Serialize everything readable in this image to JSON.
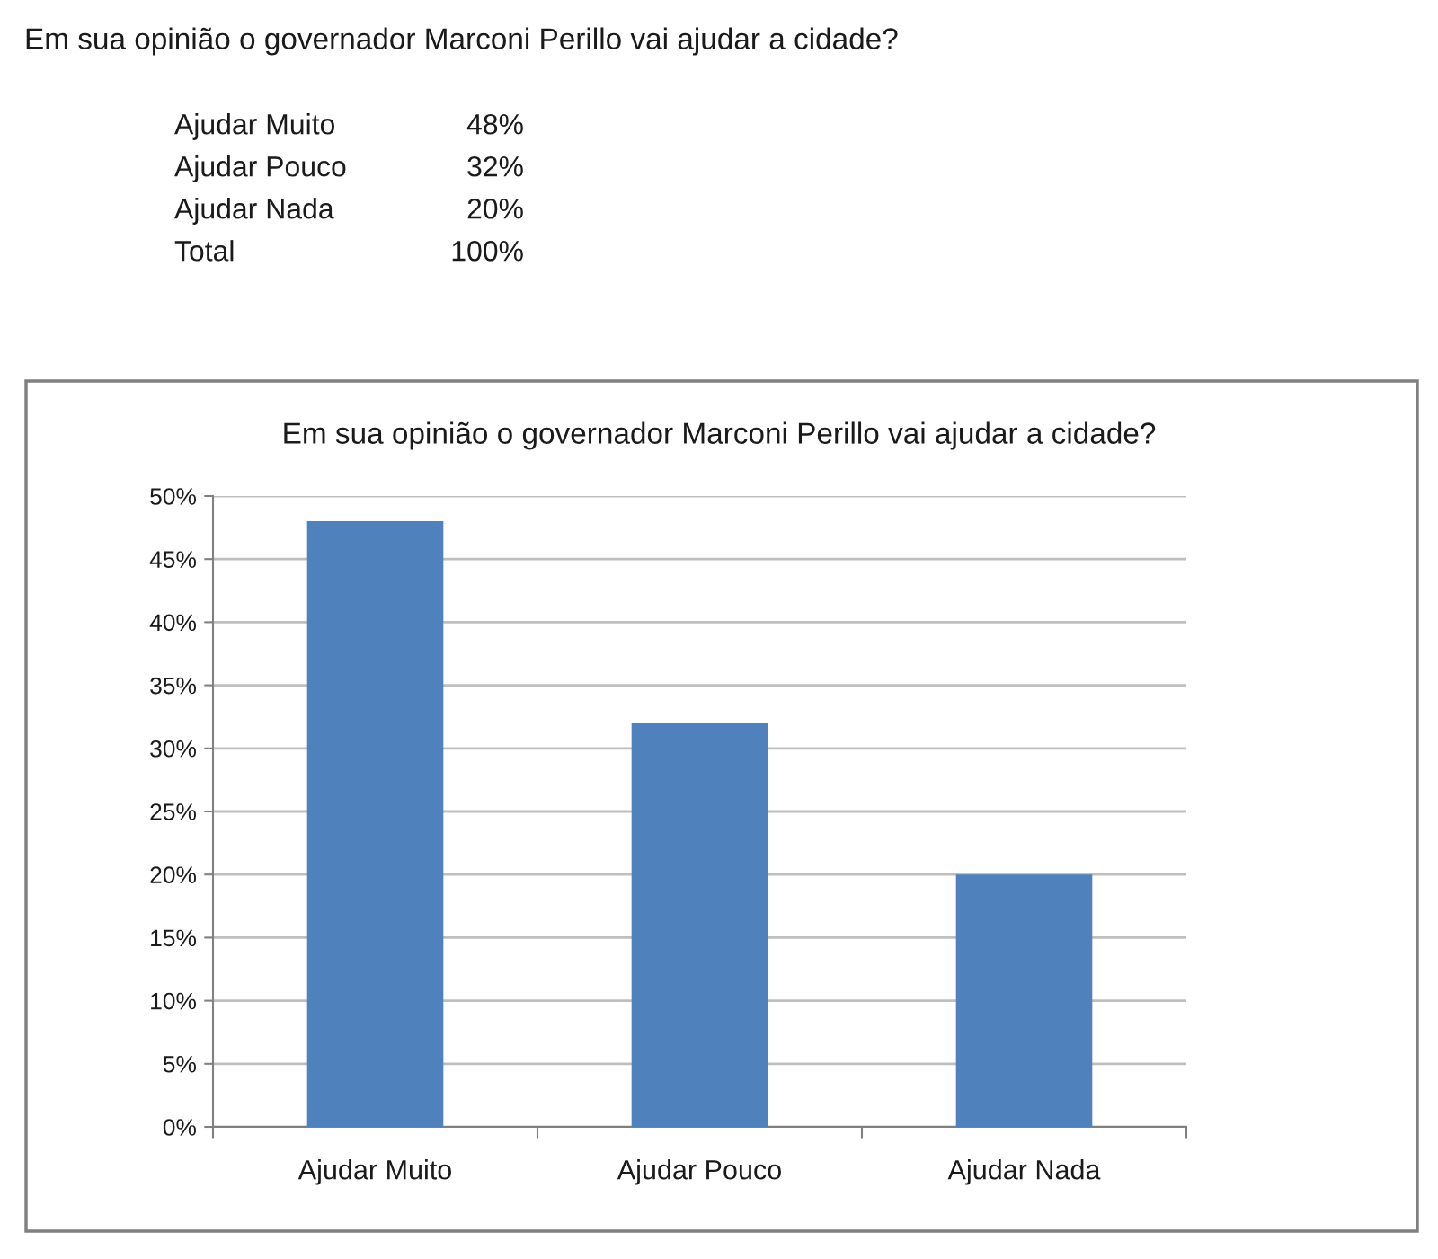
{
  "chart_data": {
    "type": "bar",
    "title": "Em sua opinião o governador Marconi Perillo vai ajudar a cidade?",
    "categories": [
      "Ajudar Muito",
      "Ajudar Pouco",
      "Ajudar Nada"
    ],
    "values": [
      48,
      32,
      20
    ],
    "color": "#4f81bd",
    "ylim": [
      0,
      50
    ],
    "yticks": [
      {
        "value": 0,
        "label": "0%"
      },
      {
        "value": 5,
        "label": "5%"
      },
      {
        "value": 10,
        "label": "10%"
      },
      {
        "value": 15,
        "label": "15%"
      },
      {
        "value": 20,
        "label": "20%"
      },
      {
        "value": 25,
        "label": "25%"
      },
      {
        "value": 30,
        "label": "30%"
      },
      {
        "value": 35,
        "label": "35%"
      },
      {
        "value": 40,
        "label": "40%"
      },
      {
        "value": 45,
        "label": "45%"
      },
      {
        "value": 50,
        "label": "50%"
      }
    ],
    "grid": "y",
    "annotations": [
      "Em sua opinião o governador Marconi Perillo vai ajudar a cidade?",
      "Ajudar Muito",
      "48%",
      "Ajudar Pouco",
      "32%",
      "Ajudar Nada",
      "20%",
      "Total",
      "100%"
    ]
  }
}
